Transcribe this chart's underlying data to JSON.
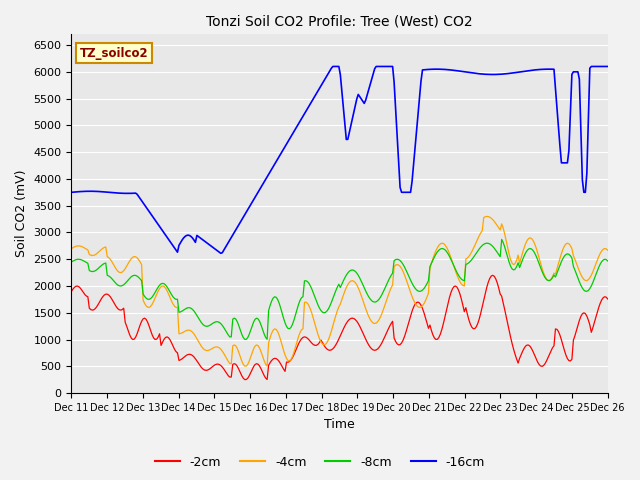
{
  "title": "Tonzi Soil CO2 Profile: Tree (West) CO2",
  "ylabel": "Soil CO2 (mV)",
  "xlabel": "Time",
  "watermark": "TZ_soilco2",
  "ylim": [
    0,
    6700
  ],
  "yticks": [
    0,
    500,
    1000,
    1500,
    2000,
    2500,
    3000,
    3500,
    4000,
    4500,
    5000,
    5500,
    6000,
    6500
  ],
  "bg_color": "#e8e8e8",
  "line_colors": {
    "2cm": "#ff0000",
    "4cm": "#ffa500",
    "8cm": "#00cc00",
    "16cm": "#0000ff"
  },
  "legend_labels": [
    "-2cm",
    "-4cm",
    "-8cm",
    "-16cm"
  ],
  "x_tick_labels": [
    "Dec 11",
    "Dec 12",
    "Dec 13",
    "Dec 14",
    "Dec 15",
    "Dec 16",
    "Dec 17",
    "Dec 18",
    "Dec 19",
    "Dec 20",
    "Dec 21",
    "Dec 22",
    "Dec 23",
    "Dec 24",
    "Dec 25",
    "Dec 26"
  ],
  "n_days": 15,
  "pts_per_day": 24
}
